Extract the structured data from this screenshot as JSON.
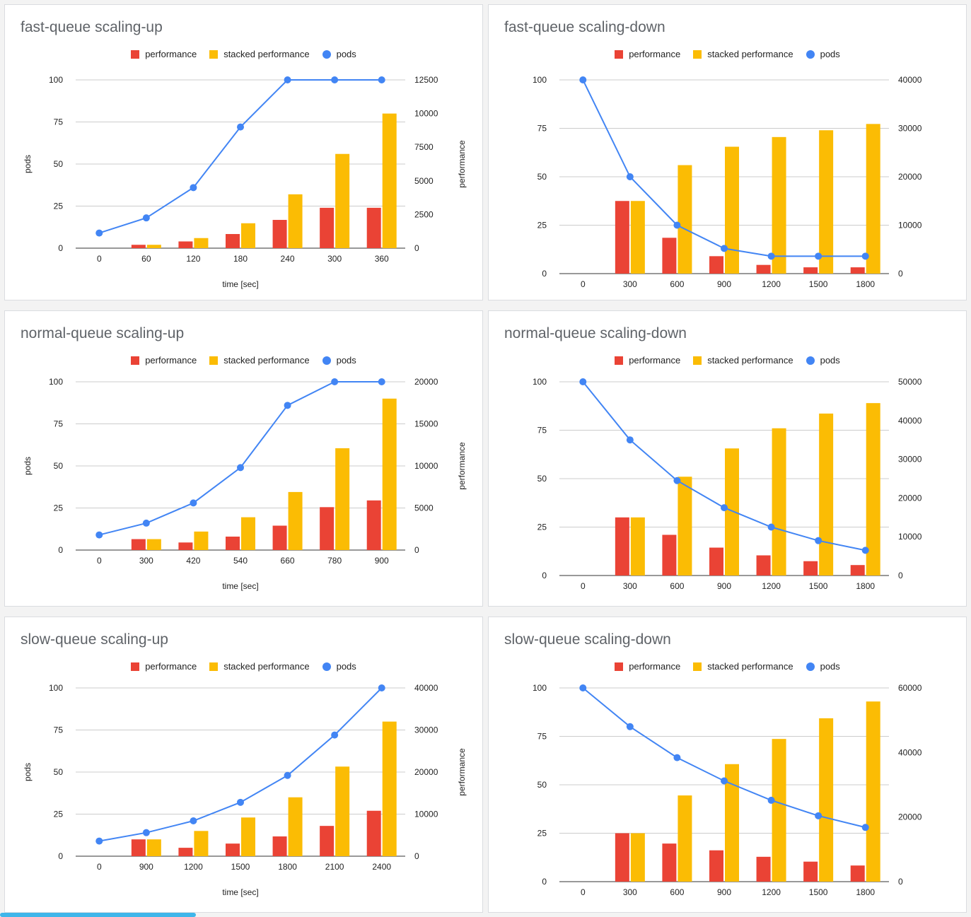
{
  "legend": {
    "performance": "performance",
    "stacked": "stacked performance",
    "pods": "pods"
  },
  "colors": {
    "performance": "#ea4335",
    "stacked": "#fbbc04",
    "pods": "#4285f4",
    "grid": "#cccccc"
  },
  "chart_data": [
    {
      "type": "bar+line",
      "title": "fast-queue scaling-up",
      "xlabel": "time [sec]",
      "ylabel_left": "pods",
      "ylabel_right": "performance",
      "categories": [
        "0",
        "60",
        "120",
        "180",
        "240",
        "300",
        "360"
      ],
      "left_axis": {
        "min": 0,
        "max": 100,
        "ticks": [
          "0",
          "25",
          "50",
          "75",
          "100"
        ]
      },
      "right_axis": {
        "min": 0,
        "max": 12500,
        "ticks": [
          "0",
          "2500",
          "5000",
          "7500",
          "10000",
          "12500"
        ]
      },
      "series": [
        {
          "name": "performance",
          "axis": "right",
          "values": [
            0,
            250,
            500,
            1050,
            2100,
            3000,
            3000
          ]
        },
        {
          "name": "stacked performance",
          "axis": "right",
          "values": [
            0,
            250,
            750,
            1850,
            4000,
            7000,
            10000
          ]
        },
        {
          "name": "pods",
          "axis": "left",
          "values": [
            9,
            18,
            36,
            72,
            100,
            100,
            100
          ]
        }
      ]
    },
    {
      "type": "bar+line",
      "title": "fast-queue scaling-down",
      "xlabel": "",
      "ylabel_left": "",
      "ylabel_right": "",
      "categories": [
        "0",
        "300",
        "600",
        "900",
        "1200",
        "1500",
        "1800"
      ],
      "left_axis": {
        "min": 0,
        "max": 100,
        "ticks": [
          "0",
          "25",
          "50",
          "75",
          "100"
        ]
      },
      "right_axis": {
        "min": 0,
        "max": 40000,
        "ticks": [
          "0",
          "10000",
          "20000",
          "30000",
          "40000"
        ]
      },
      "series": [
        {
          "name": "performance",
          "axis": "right",
          "values": [
            0,
            15000,
            7400,
            3600,
            1800,
            1300,
            1300
          ]
        },
        {
          "name": "stacked performance",
          "axis": "right",
          "values": [
            0,
            15000,
            22400,
            26200,
            28200,
            29600,
            30900
          ]
        },
        {
          "name": "pods",
          "axis": "left",
          "values": [
            100,
            50,
            25,
            13,
            9,
            9,
            9
          ]
        }
      ]
    },
    {
      "type": "bar+line",
      "title": "normal-queue scaling-up",
      "xlabel": "time [sec]",
      "ylabel_left": "pods",
      "ylabel_right": "performance",
      "categories": [
        "0",
        "300",
        "420",
        "540",
        "660",
        "780",
        "900"
      ],
      "left_axis": {
        "min": 0,
        "max": 100,
        "ticks": [
          "0",
          "25",
          "50",
          "75",
          "100"
        ]
      },
      "right_axis": {
        "min": 0,
        "max": 20000,
        "ticks": [
          "0",
          "5000",
          "10000",
          "15000",
          "20000"
        ]
      },
      "series": [
        {
          "name": "performance",
          "axis": "right",
          "values": [
            0,
            1300,
            900,
            1600,
            2900,
            5100,
            5900
          ]
        },
        {
          "name": "stacked performance",
          "axis": "right",
          "values": [
            0,
            1300,
            2200,
            3900,
            6900,
            12100,
            18000
          ]
        },
        {
          "name": "pods",
          "axis": "left",
          "values": [
            9,
            16,
            28,
            49,
            86,
            100,
            100
          ]
        }
      ]
    },
    {
      "type": "bar+line",
      "title": "normal-queue scaling-down",
      "xlabel": "",
      "ylabel_left": "",
      "ylabel_right": "",
      "categories": [
        "0",
        "300",
        "600",
        "900",
        "1200",
        "1500",
        "1800"
      ],
      "left_axis": {
        "min": 0,
        "max": 100,
        "ticks": [
          "0",
          "25",
          "50",
          "75",
          "100"
        ]
      },
      "right_axis": {
        "min": 0,
        "max": 50000,
        "ticks": [
          "0",
          "10000",
          "20000",
          "30000",
          "40000",
          "50000"
        ]
      },
      "series": [
        {
          "name": "performance",
          "axis": "right",
          "values": [
            0,
            15000,
            10500,
            7200,
            5200,
            3700,
            2700
          ]
        },
        {
          "name": "stacked performance",
          "axis": "right",
          "values": [
            0,
            15000,
            25500,
            32800,
            38000,
            41800,
            44500
          ]
        },
        {
          "name": "pods",
          "axis": "left",
          "values": [
            100,
            70,
            49,
            35,
            25,
            18,
            13
          ]
        }
      ]
    },
    {
      "type": "bar+line",
      "title": "slow-queue scaling-up",
      "xlabel": "time [sec]",
      "ylabel_left": "pods",
      "ylabel_right": "performance",
      "categories": [
        "0",
        "900",
        "1200",
        "1500",
        "1800",
        "2100",
        "2400"
      ],
      "left_axis": {
        "min": 0,
        "max": 100,
        "ticks": [
          "0",
          "25",
          "50",
          "75",
          "100"
        ]
      },
      "right_axis": {
        "min": 0,
        "max": 40000,
        "ticks": [
          "0",
          "10000",
          "20000",
          "30000",
          "40000"
        ]
      },
      "series": [
        {
          "name": "performance",
          "axis": "right",
          "values": [
            0,
            4000,
            2000,
            3000,
            4700,
            7200,
            10800
          ]
        },
        {
          "name": "stacked performance",
          "axis": "right",
          "values": [
            0,
            4000,
            6000,
            9200,
            14000,
            21300,
            32000
          ]
        },
        {
          "name": "pods",
          "axis": "left",
          "values": [
            9,
            14,
            21,
            32,
            48,
            72,
            100
          ]
        }
      ]
    },
    {
      "type": "bar+line",
      "title": "slow-queue scaling-down",
      "xlabel": "",
      "ylabel_left": "",
      "ylabel_right": "",
      "categories": [
        "0",
        "300",
        "600",
        "900",
        "1200",
        "1500",
        "1800"
      ],
      "left_axis": {
        "min": 0,
        "max": 100,
        "ticks": [
          "0",
          "25",
          "50",
          "75",
          "100"
        ]
      },
      "right_axis": {
        "min": 0,
        "max": 60000,
        "ticks": [
          "0",
          "20000",
          "40000",
          "60000"
        ]
      },
      "series": [
        {
          "name": "performance",
          "axis": "right",
          "values": [
            0,
            15000,
            11800,
            9700,
            7700,
            6200,
            5000
          ]
        },
        {
          "name": "stacked performance",
          "axis": "right",
          "values": [
            0,
            15000,
            26700,
            36400,
            44200,
            50600,
            55800
          ]
        },
        {
          "name": "pods",
          "axis": "left",
          "values": [
            100,
            80,
            64,
            52,
            42,
            34,
            28
          ]
        }
      ]
    }
  ]
}
